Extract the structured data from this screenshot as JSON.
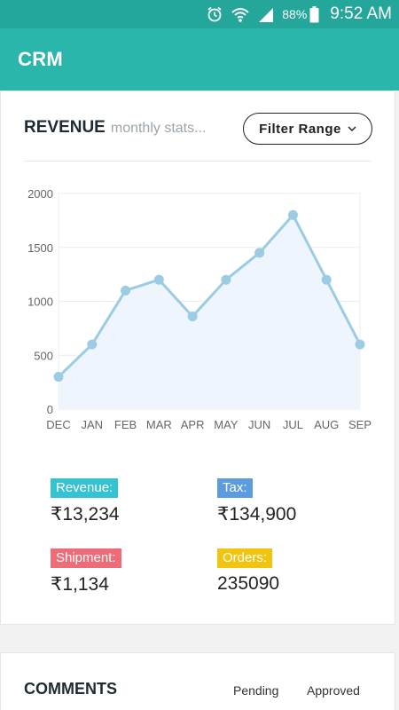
{
  "status_bar": {
    "battery": "88%",
    "time": "9:52 AM",
    "icons": [
      "alarm-icon",
      "wifi-icon",
      "signal-icon",
      "battery-icon"
    ]
  },
  "app_bar": {
    "title": "CRM",
    "color": "#2bb6ac"
  },
  "revenue_card": {
    "title": "REVENUE",
    "subtitle": "monthly stats...",
    "filter_label": "Filter Range",
    "stats": [
      {
        "label": "Revenue:",
        "value": "₹13,234",
        "color": "#35c3d3"
      },
      {
        "label": "Tax:",
        "value": "₹134,900",
        "color": "#5b9be0"
      },
      {
        "label": "Shipment:",
        "value": "₹1,134",
        "color": "#ee6b78"
      },
      {
        "label": "Orders:",
        "value": "235090",
        "color": "#f2c40f"
      }
    ]
  },
  "chart_data": {
    "type": "area",
    "categories": [
      "DEC",
      "JAN",
      "FEB",
      "MAR",
      "APR",
      "MAY",
      "JUN",
      "JUL",
      "AUG",
      "SEP"
    ],
    "values": [
      300,
      600,
      1100,
      1200,
      860,
      1200,
      1450,
      1800,
      1200,
      600
    ],
    "yticks": [
      "0",
      "500",
      "1000",
      "1500",
      "2000"
    ],
    "ylim": [
      0,
      2000
    ],
    "grid": true,
    "line_color": "#9ccbe4",
    "fill_color": "#eef5fc"
  },
  "comments_card": {
    "title": "COMMENTS",
    "tabs": [
      "Pending",
      "Approved"
    ]
  }
}
